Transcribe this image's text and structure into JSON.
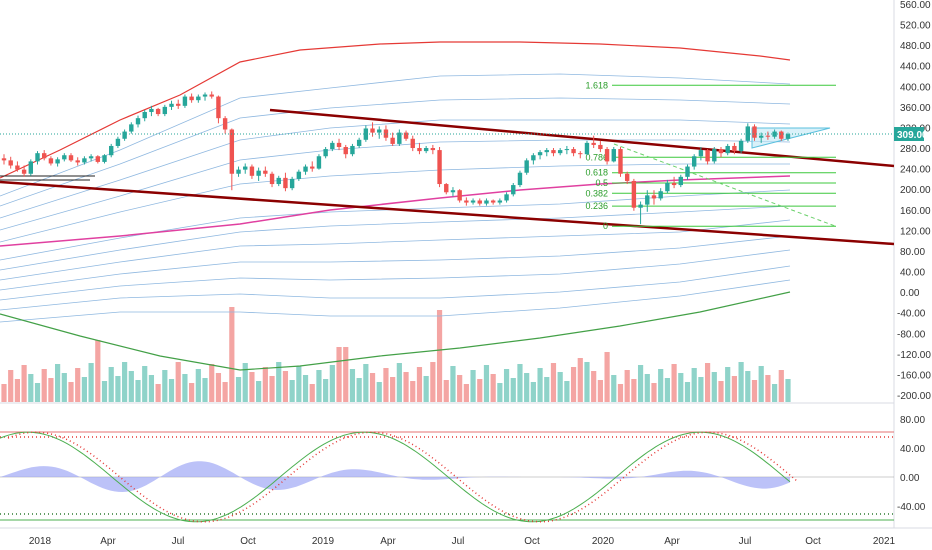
{
  "chart_data": {
    "type": "candlestick",
    "y_axis": {
      "ticks": [
        "560.00",
        "520.00",
        "480.00",
        "440.00",
        "400.00",
        "360.00",
        "320.00",
        "280.00",
        "240.00",
        "200.00",
        "160.00",
        "120.00",
        "80.00",
        "40.00",
        "0.00",
        "-40.00",
        "-80.00",
        "-120.00",
        "-160.00",
        "-200.00"
      ],
      "range": [
        -210,
        565
      ]
    },
    "x_axis": {
      "ticks": [
        "2018",
        "Apr",
        "Jul",
        "Oct",
        "2019",
        "Apr",
        "Jul",
        "Oct",
        "2020",
        "Apr",
        "Jul",
        "Oct",
        "2021"
      ]
    },
    "price_label": "309.00",
    "fib_levels": [
      {
        "label": "1.618",
        "value": 404
      },
      {
        "label": "0.786",
        "value": 264
      },
      {
        "label": "0.618",
        "value": 234
      },
      {
        "label": "0.5",
        "value": 214
      },
      {
        "label": "0.382",
        "value": 194
      },
      {
        "label": "0.236",
        "value": 169
      },
      {
        "label": "0",
        "value": 130
      }
    ],
    "candles": [
      [
        262,
        270,
        250,
        258
      ],
      [
        258,
        265,
        242,
        248
      ],
      [
        248,
        256,
        236,
        240
      ],
      [
        240,
        248,
        226,
        232
      ],
      [
        232,
        260,
        228,
        256
      ],
      [
        256,
        276,
        250,
        272
      ],
      [
        272,
        278,
        258,
        262
      ],
      [
        262,
        266,
        248,
        252
      ],
      [
        252,
        264,
        246,
        260
      ],
      [
        260,
        272,
        256,
        268
      ],
      [
        268,
        272,
        255,
        258
      ],
      [
        258,
        264,
        248,
        254
      ],
      [
        254,
        266,
        250,
        262
      ],
      [
        262,
        270,
        256,
        266
      ],
      [
        266,
        268,
        252,
        255
      ],
      [
        255,
        270,
        252,
        268
      ],
      [
        268,
        290,
        264,
        286
      ],
      [
        286,
        304,
        282,
        300
      ],
      [
        300,
        318,
        296,
        314
      ],
      [
        314,
        332,
        310,
        328
      ],
      [
        328,
        345,
        322,
        340
      ],
      [
        340,
        356,
        334,
        352
      ],
      [
        352,
        364,
        344,
        358
      ],
      [
        358,
        360,
        344,
        348
      ],
      [
        348,
        366,
        344,
        362
      ],
      [
        362,
        374,
        356,
        368
      ],
      [
        368,
        376,
        358,
        364
      ],
      [
        364,
        386,
        360,
        382
      ],
      [
        382,
        388,
        370,
        375
      ],
      [
        375,
        386,
        370,
        382
      ],
      [
        382,
        390,
        374,
        386
      ],
      [
        386,
        392,
        378,
        382
      ],
      [
        382,
        384,
        330,
        340
      ],
      [
        340,
        344,
        310,
        318
      ],
      [
        318,
        320,
        200,
        232
      ],
      [
        232,
        246,
        226,
        240
      ],
      [
        240,
        252,
        232,
        246
      ],
      [
        246,
        250,
        222,
        228
      ],
      [
        228,
        244,
        218,
        238
      ],
      [
        238,
        246,
        226,
        232
      ],
      [
        232,
        236,
        206,
        212
      ],
      [
        212,
        228,
        208,
        224
      ],
      [
        224,
        234,
        198,
        204
      ],
      [
        204,
        226,
        200,
        222
      ],
      [
        222,
        240,
        218,
        236
      ],
      [
        236,
        250,
        230,
        246
      ],
      [
        246,
        256,
        236,
        242
      ],
      [
        242,
        270,
        240,
        266
      ],
      [
        266,
        284,
        262,
        280
      ],
      [
        280,
        296,
        276,
        292
      ],
      [
        292,
        300,
        278,
        284
      ],
      [
        284,
        288,
        262,
        270
      ],
      [
        270,
        290,
        266,
        286
      ],
      [
        286,
        302,
        282,
        298
      ],
      [
        298,
        326,
        294,
        320
      ],
      [
        320,
        332,
        304,
        312
      ],
      [
        312,
        324,
        300,
        318
      ],
      [
        318,
        326,
        296,
        302
      ],
      [
        302,
        312,
        286,
        290
      ],
      [
        290,
        318,
        286,
        312
      ],
      [
        312,
        316,
        296,
        300
      ],
      [
        300,
        306,
        276,
        282
      ],
      [
        282,
        292,
        270,
        276
      ],
      [
        276,
        286,
        272,
        282
      ],
      [
        282,
        288,
        270,
        278
      ],
      [
        278,
        284,
        206,
        212
      ],
      [
        212,
        214,
        192,
        196
      ],
      [
        196,
        206,
        188,
        200
      ],
      [
        200,
        202,
        176,
        180
      ],
      [
        180,
        186,
        170,
        176
      ],
      [
        176,
        184,
        172,
        180
      ],
      [
        180,
        184,
        170,
        174
      ],
      [
        174,
        184,
        170,
        180
      ],
      [
        180,
        182,
        172,
        176
      ],
      [
        176,
        184,
        172,
        180
      ],
      [
        180,
        196,
        176,
        192
      ],
      [
        192,
        214,
        188,
        210
      ],
      [
        210,
        238,
        206,
        234
      ],
      [
        234,
        262,
        230,
        258
      ],
      [
        258,
        272,
        250,
        268
      ],
      [
        268,
        278,
        260,
        274
      ],
      [
        274,
        282,
        266,
        278
      ],
      [
        278,
        282,
        266,
        272
      ],
      [
        272,
        282,
        268,
        278
      ],
      [
        278,
        286,
        270,
        280
      ],
      [
        280,
        284,
        266,
        272
      ],
      [
        272,
        276,
        262,
        270
      ],
      [
        270,
        296,
        268,
        292
      ],
      [
        292,
        306,
        282,
        288
      ],
      [
        288,
        296,
        274,
        280
      ],
      [
        280,
        284,
        250,
        256
      ],
      [
        256,
        284,
        254,
        280
      ],
      [
        280,
        284,
        226,
        232
      ],
      [
        232,
        236,
        212,
        218
      ],
      [
        218,
        222,
        160,
        166
      ],
      [
        166,
        178,
        134,
        172
      ],
      [
        172,
        200,
        158,
        190
      ],
      [
        190,
        200,
        172,
        184
      ],
      [
        184,
        204,
        180,
        198
      ],
      [
        198,
        220,
        194,
        214
      ],
      [
        214,
        226,
        204,
        210
      ],
      [
        210,
        230,
        206,
        226
      ],
      [
        226,
        250,
        220,
        246
      ],
      [
        246,
        270,
        240,
        266
      ],
      [
        266,
        284,
        258,
        278
      ],
      [
        278,
        280,
        250,
        256
      ],
      [
        256,
        284,
        252,
        280
      ],
      [
        280,
        284,
        264,
        272
      ],
      [
        272,
        290,
        268,
        286
      ],
      [
        286,
        292,
        270,
        276
      ],
      [
        276,
        300,
        272,
        296
      ],
      [
        296,
        330,
        292,
        324
      ],
      [
        324,
        328,
        296,
        302
      ],
      [
        302,
        312,
        292,
        306
      ],
      [
        306,
        314,
        298,
        304
      ],
      [
        304,
        318,
        300,
        314
      ],
      [
        314,
        316,
        296,
        300
      ],
      [
        300,
        312,
        296,
        309
      ]
    ]
  }
}
